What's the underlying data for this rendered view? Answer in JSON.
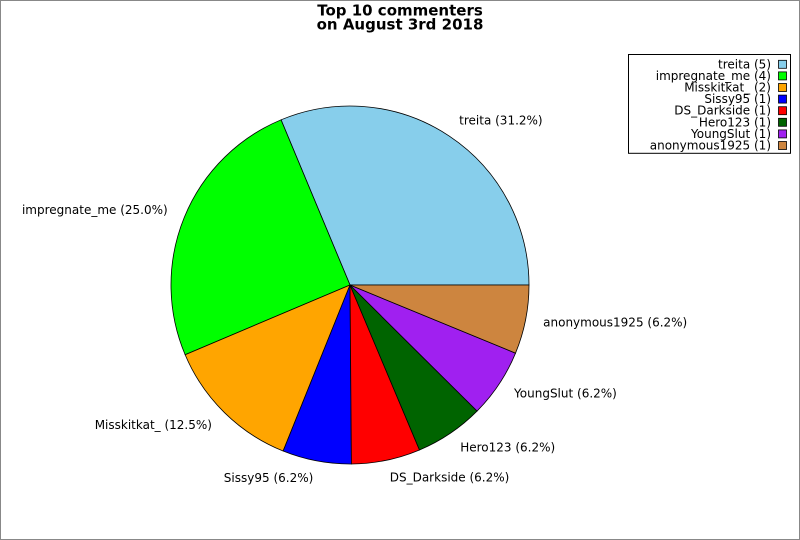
{
  "chart_data": {
    "type": "pie",
    "title": "Top 10 commenters",
    "subtitle": "on August 3rd 2018",
    "categories": [
      "treita",
      "impregnate_me",
      "Misskitkat_",
      "Sissy95",
      "DS_Darkside",
      "Hero123",
      "YoungSlut",
      "anonymous1925"
    ],
    "values": [
      31.2,
      25.0,
      12.5,
      6.2,
      6.2,
      6.2,
      6.2,
      6.2
    ],
    "value_labels": [
      "treita (31.2%)",
      "impregnate_me (25.0%)",
      "Misskitkat_ (12.5%)",
      "Sissy95 (6.2%)",
      "DS_Darkside (6.2%)",
      "Hero123 (6.2%)",
      "YoungSlut (6.2%)",
      "anonymous1925 (6.2%)"
    ],
    "legend_labels": [
      "treita (5)",
      "impregnate_me (4)",
      "Misskitkat_ (2)",
      "Sissy95 (1)",
      "DS_Darkside (1)",
      "Hero123 (1)",
      "YoungSlut (1)",
      "anonymous1925 (1)"
    ],
    "colors": [
      "#87ceeb",
      "#00ff00",
      "#ffa500",
      "#0000ff",
      "#ff0000",
      "#006400",
      "#a020f0",
      "#cd853f"
    ],
    "legend": "upper right"
  }
}
